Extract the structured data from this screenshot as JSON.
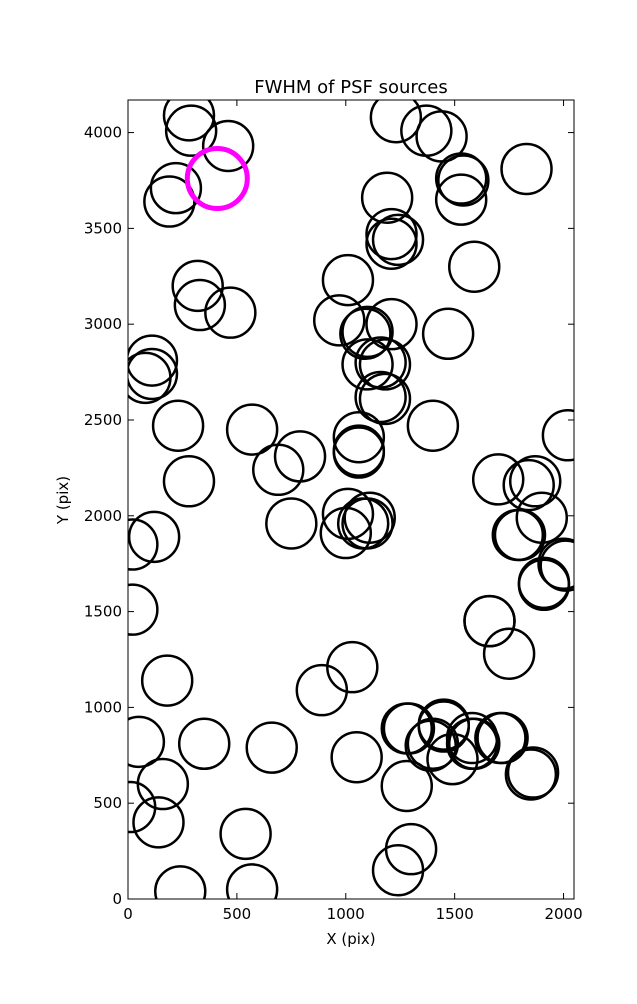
{
  "chart_data": {
    "type": "scatter",
    "title": "FWHM of PSF sources",
    "xlabel": "X (pix)",
    "ylabel": "Y (pix)",
    "xlim": [
      0,
      2048
    ],
    "ylim": [
      0,
      4170
    ],
    "grid": false,
    "xticks": [
      0,
      500,
      1000,
      1500,
      2000
    ],
    "yticks": [
      0,
      500,
      1000,
      1500,
      2000,
      2500,
      3000,
      3500,
      4000
    ],
    "marker": "circle",
    "marker_color": "#000000",
    "highlight_color": "#ff00ff",
    "highlight_index": 96,
    "series": [
      {
        "values": [
          {
            "x": 280,
            "y": 4090
          },
          {
            "x": 290,
            "y": 4010
          },
          {
            "x": 460,
            "y": 3930
          },
          {
            "x": 220,
            "y": 3710
          },
          {
            "x": 190,
            "y": 3640
          },
          {
            "x": 320,
            "y": 3200
          },
          {
            "x": 330,
            "y": 3100
          },
          {
            "x": 470,
            "y": 3060
          },
          {
            "x": 110,
            "y": 2810
          },
          {
            "x": 110,
            "y": 2740
          },
          {
            "x": 80,
            "y": 2720
          },
          {
            "x": 230,
            "y": 2470
          },
          {
            "x": 280,
            "y": 2180
          },
          {
            "x": 570,
            "y": 2450
          },
          {
            "x": 690,
            "y": 2240
          },
          {
            "x": 790,
            "y": 2310
          },
          {
            "x": 750,
            "y": 1960
          },
          {
            "x": 20,
            "y": 1850
          },
          {
            "x": 120,
            "y": 1890
          },
          {
            "x": 20,
            "y": 1510
          },
          {
            "x": 180,
            "y": 1140
          },
          {
            "x": 50,
            "y": 820
          },
          {
            "x": 350,
            "y": 810
          },
          {
            "x": 160,
            "y": 600
          },
          {
            "x": 10,
            "y": 480
          },
          {
            "x": 140,
            "y": 400
          },
          {
            "x": 540,
            "y": 340
          },
          {
            "x": 240,
            "y": 40
          },
          {
            "x": 570,
            "y": 50
          },
          {
            "x": 660,
            "y": 790
          },
          {
            "x": 890,
            "y": 1090
          },
          {
            "x": 1030,
            "y": 1210
          },
          {
            "x": 1050,
            "y": 740
          },
          {
            "x": 1000,
            "y": 1910
          },
          {
            "x": 1010,
            "y": 2010
          },
          {
            "x": 1080,
            "y": 1960
          },
          {
            "x": 1110,
            "y": 1990
          },
          {
            "x": 1060,
            "y": 2340
          },
          {
            "x": 1060,
            "y": 2410
          },
          {
            "x": 1180,
            "y": 2610
          },
          {
            "x": 1100,
            "y": 2790
          },
          {
            "x": 1160,
            "y": 2800
          },
          {
            "x": 1100,
            "y": 2960
          },
          {
            "x": 1210,
            "y": 3000
          },
          {
            "x": 970,
            "y": 3020
          },
          {
            "x": 1010,
            "y": 3230
          },
          {
            "x": 1210,
            "y": 3420
          },
          {
            "x": 1210,
            "y": 3470
          },
          {
            "x": 1190,
            "y": 3660
          },
          {
            "x": 1230,
            "y": 4080
          },
          {
            "x": 1370,
            "y": 4010
          },
          {
            "x": 1440,
            "y": 3980
          },
          {
            "x": 1540,
            "y": 3750
          },
          {
            "x": 1530,
            "y": 3650
          },
          {
            "x": 1590,
            "y": 3300
          },
          {
            "x": 1470,
            "y": 2950
          },
          {
            "x": 1400,
            "y": 2470
          },
          {
            "x": 1700,
            "y": 2190
          },
          {
            "x": 1840,
            "y": 2160
          },
          {
            "x": 1900,
            "y": 1990
          },
          {
            "x": 1800,
            "y": 1900
          },
          {
            "x": 2010,
            "y": 1740
          },
          {
            "x": 1910,
            "y": 1650
          },
          {
            "x": 2020,
            "y": 2420
          },
          {
            "x": 1660,
            "y": 1450
          },
          {
            "x": 1750,
            "y": 1280
          },
          {
            "x": 1830,
            "y": 3810
          },
          {
            "x": 1290,
            "y": 890
          },
          {
            "x": 1450,
            "y": 910
          },
          {
            "x": 1400,
            "y": 810
          },
          {
            "x": 1580,
            "y": 840
          },
          {
            "x": 1590,
            "y": 810
          },
          {
            "x": 1710,
            "y": 840
          },
          {
            "x": 1490,
            "y": 730
          },
          {
            "x": 1850,
            "y": 650
          },
          {
            "x": 1280,
            "y": 590
          },
          {
            "x": 1300,
            "y": 260
          },
          {
            "x": 1240,
            "y": 150
          },
          {
            "x": 1160,
            "y": 2620
          },
          {
            "x": 1090,
            "y": 2950
          },
          {
            "x": 1580,
            "y": 810
          },
          {
            "x": 1530,
            "y": 3760
          },
          {
            "x": 1280,
            "y": 890
          },
          {
            "x": 1060,
            "y": 2330
          },
          {
            "x": 1100,
            "y": 1960
          },
          {
            "x": 1240,
            "y": 3440
          },
          {
            "x": 1180,
            "y": 2790
          },
          {
            "x": 1870,
            "y": 2180
          },
          {
            "x": 1790,
            "y": 1900
          },
          {
            "x": 1910,
            "y": 1640
          },
          {
            "x": 1860,
            "y": 660
          },
          {
            "x": 1390,
            "y": 800
          },
          {
            "x": 1720,
            "y": 840
          },
          {
            "x": 1450,
            "y": 900
          },
          {
            "x": 2000,
            "y": 1750
          },
          {
            "x": 1660,
            "y": 1450
          },
          {
            "x": 410,
            "y": 3760
          }
        ]
      }
    ]
  }
}
